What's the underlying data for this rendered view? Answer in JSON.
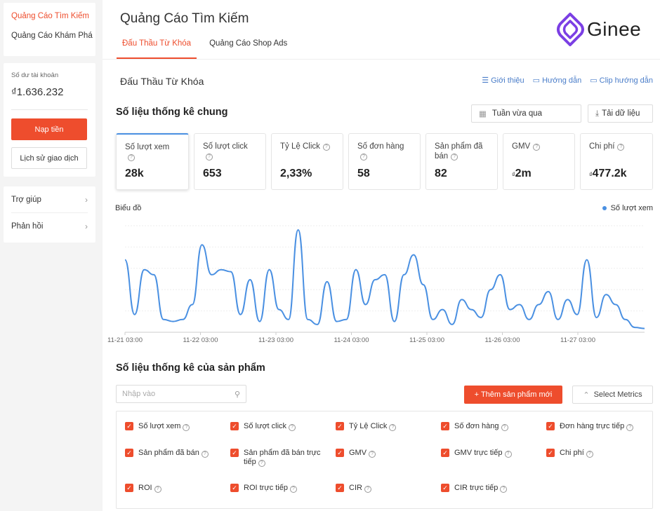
{
  "sidebar": {
    "nav": [
      "Quảng Cáo Tìm Kiếm",
      "Quảng Cáo Khám Phá"
    ],
    "balance_label": "Số dư tài khoản",
    "balance_value": "₫1.636.232",
    "topup_label": "Nạp tiền",
    "history_label": "Lịch sử giao dịch",
    "help_label": "Trợ giúp",
    "feedback_label": "Phản hồi"
  },
  "header": {
    "title": "Quảng Cáo Tìm Kiếm",
    "tabs": [
      "Đấu Thầu Từ Khóa",
      "Quảng Cáo Shop Ads"
    ],
    "logo_text": "Ginee"
  },
  "main": {
    "section_title": "Đấu Thầu Từ Khóa",
    "links": [
      "Giới thiệu",
      "Hướng dẫn",
      "Clip hướng dẫn"
    ],
    "stats_title": "Số liệu thống kê chung",
    "period_label": "Tuần vừa qua",
    "download_label": "Tải dữ liệu",
    "metrics": [
      {
        "label": "Số lượt xem",
        "value": "28k",
        "currency": ""
      },
      {
        "label": "Số lượt click",
        "value": "653",
        "currency": ""
      },
      {
        "label": "Tỷ Lệ Click",
        "value": "2,33%",
        "currency": ""
      },
      {
        "label": "Số đơn hàng",
        "value": "58",
        "currency": ""
      },
      {
        "label": "Sản phẩm đã bán",
        "value": "82",
        "currency": ""
      },
      {
        "label": "GMV",
        "value": "2m",
        "currency": "₫"
      },
      {
        "label": "Chi phí",
        "value": "477.2k",
        "currency": "₫"
      }
    ],
    "chart_title": "Biểu đồ",
    "product_stats_title": "Số liệu thống kê của sản phẩm",
    "search_placeholder": "Nhập vào",
    "add_product_label": "+ Thêm sản phẩm mới",
    "select_metrics_label": "Select Metrics",
    "checkbox_metrics": [
      "Số lượt xem",
      "Số lượt click",
      "Tỷ Lệ Click",
      "Số đơn hàng",
      "Đơn hàng trực tiếp",
      "Sản phẩm đã bán",
      "Sản phẩm đã bán trực tiếp",
      "GMV",
      "GMV trực tiếp",
      "Chi phí",
      "ROI",
      "ROI trực tiếp",
      "CIR",
      "CIR trực tiếp"
    ]
  },
  "colors": {
    "accent": "#ee4d2d",
    "series": "#4a90e2"
  },
  "chart_data": {
    "type": "line",
    "title": "",
    "legend": "top-right",
    "grid": true,
    "x_ticks": [
      "11-21 03:00",
      "11-22 03:00",
      "11-23 03:00",
      "11-24 03:00",
      "11-25 03:00",
      "11-26 03:00",
      "11-27 03:00"
    ],
    "series": [
      {
        "name": "Số lượt xem",
        "values": [
          70,
          15,
          60,
          55,
          10,
          8,
          10,
          25,
          85,
          55,
          60,
          58,
          15,
          50,
          8,
          60,
          20,
          10,
          100,
          10,
          5,
          48,
          8,
          10,
          60,
          25,
          50,
          55,
          8,
          55,
          75,
          45,
          10,
          20,
          5,
          30,
          20,
          12,
          40,
          55,
          20,
          25,
          10,
          25,
          38,
          10,
          30,
          15,
          70,
          12,
          35,
          25,
          10,
          2,
          1
        ]
      }
    ]
  }
}
